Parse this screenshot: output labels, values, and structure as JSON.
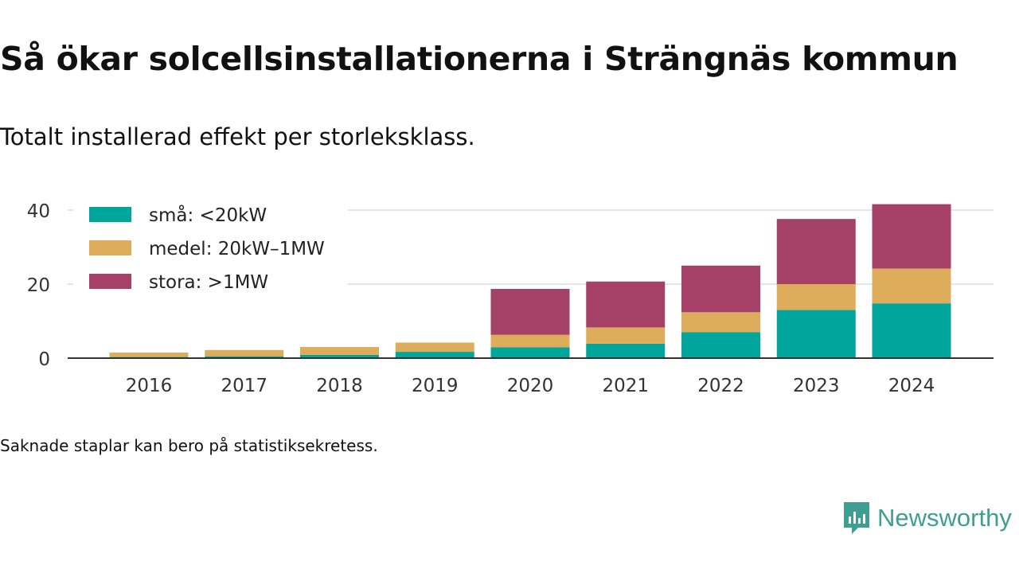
{
  "title": "Så ökar solcellsinstallationerna i Strängnäs kommun",
  "subtitle": "Totalt installerad effekt per storleksklass.",
  "footnote": "Saknade staplar kan bero på statistiksekretess.",
  "brand": {
    "name": "Newsworthy",
    "color": "#3f9e92",
    "icon": "newsworthy-logo-icon"
  },
  "chart_data": {
    "type": "bar",
    "stacked": true,
    "categories": [
      "2016",
      "2017",
      "2018",
      "2019",
      "2020",
      "2021",
      "2022",
      "2023",
      "2024"
    ],
    "series": [
      {
        "name": "små: <20kW",
        "color": "#00a69c",
        "values": [
          0.3,
          0.5,
          0.9,
          1.7,
          2.9,
          3.9,
          7.0,
          13.0,
          14.8
        ]
      },
      {
        "name": "medel: 20kW–1MW",
        "color": "#ddad5b",
        "values": [
          1.2,
          1.7,
          2.1,
          2.5,
          3.4,
          4.4,
          5.4,
          7.0,
          9.4
        ]
      },
      {
        "name": "stora: >1MW",
        "color": "#a54067",
        "values": [
          0,
          0,
          0,
          0,
          12.4,
          12.4,
          12.6,
          17.6,
          17.4
        ]
      }
    ],
    "yticks": [
      0,
      20,
      40
    ],
    "ylim": [
      0,
      42
    ],
    "grid": true,
    "legend_position": "top-left",
    "xlabel": "",
    "ylabel": ""
  }
}
